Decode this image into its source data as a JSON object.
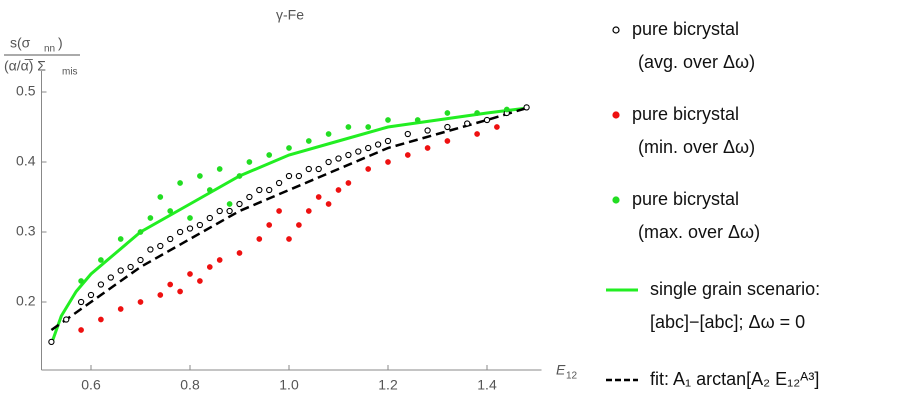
{
  "chart_data": {
    "type": "scatter",
    "title": "γ-Fe",
    "y_label": {
      "numerator": [
        "s(σ",
        "nn",
        ")"
      ],
      "denominator": [
        "(α/α̅) Σ",
        "mis"
      ]
    },
    "x_label": [
      "E",
      "12"
    ],
    "xlim": [
      0.5,
      1.5
    ],
    "ylim": [
      0.1,
      0.53
    ],
    "xticks": [
      0.6,
      0.8,
      {
        "value": 1.0,
        "label": "1.0"
      },
      1.2,
      1.4
    ],
    "yticks": [
      0.2,
      0.3,
      0.4,
      0.5
    ],
    "series": [
      {
        "name": "pure bicrystal",
        "name_line2": "(avg. over Δω)",
        "kind": "open",
        "color": "#000000",
        "x": [
          0.52,
          0.55,
          0.58,
          0.6,
          0.62,
          0.64,
          0.66,
          0.68,
          0.7,
          0.72,
          0.74,
          0.76,
          0.78,
          0.8,
          0.82,
          0.84,
          0.86,
          0.88,
          0.9,
          0.92,
          0.94,
          0.96,
          0.98,
          1.0,
          1.02,
          1.04,
          1.06,
          1.08,
          1.1,
          1.12,
          1.14,
          1.16,
          1.18,
          1.2,
          1.24,
          1.28,
          1.32,
          1.36,
          1.4,
          1.44,
          1.48
        ],
        "values": [
          0.143,
          0.175,
          0.2,
          0.21,
          0.225,
          0.235,
          0.245,
          0.25,
          0.26,
          0.275,
          0.28,
          0.29,
          0.3,
          0.305,
          0.31,
          0.32,
          0.33,
          0.33,
          0.34,
          0.35,
          0.36,
          0.36,
          0.37,
          0.38,
          0.38,
          0.39,
          0.39,
          0.4,
          0.405,
          0.41,
          0.415,
          0.42,
          0.425,
          0.43,
          0.44,
          0.445,
          0.45,
          0.455,
          0.46,
          0.47,
          0.478
        ]
      },
      {
        "name": "pure bicrystal",
        "name_line2": "(min. over Δω)",
        "kind": "dot",
        "color": "#ee1111",
        "x": [
          0.58,
          0.62,
          0.66,
          0.7,
          0.74,
          0.76,
          0.78,
          0.8,
          0.82,
          0.84,
          0.86,
          0.9,
          0.94,
          0.96,
          0.98,
          1.0,
          1.02,
          1.04,
          1.06,
          1.08,
          1.1,
          1.12,
          1.16,
          1.2,
          1.24,
          1.28,
          1.32,
          1.38,
          1.42
        ],
        "values": [
          0.16,
          0.175,
          0.19,
          0.2,
          0.21,
          0.225,
          0.215,
          0.24,
          0.23,
          0.25,
          0.26,
          0.27,
          0.29,
          0.31,
          0.33,
          0.29,
          0.31,
          0.33,
          0.35,
          0.34,
          0.36,
          0.37,
          0.39,
          0.4,
          0.41,
          0.42,
          0.43,
          0.44,
          0.45
        ]
      },
      {
        "name": "pure bicrystal",
        "name_line2": "(max. over Δω)",
        "kind": "dot",
        "color": "#22dd22",
        "x": [
          0.58,
          0.62,
          0.66,
          0.7,
          0.72,
          0.74,
          0.76,
          0.78,
          0.8,
          0.82,
          0.84,
          0.86,
          0.88,
          0.9,
          0.92,
          0.96,
          1.0,
          1.04,
          1.08,
          1.12,
          1.16,
          1.2,
          1.26,
          1.32,
          1.38,
          1.44
        ],
        "values": [
          0.23,
          0.26,
          0.29,
          0.3,
          0.32,
          0.35,
          0.33,
          0.37,
          0.32,
          0.38,
          0.36,
          0.39,
          0.34,
          0.38,
          0.4,
          0.41,
          0.42,
          0.43,
          0.44,
          0.45,
          0.45,
          0.46,
          0.46,
          0.47,
          0.47,
          0.475
        ]
      },
      {
        "name": "single grain scenario:",
        "name_line2": "[abc]−[abc]; Δω = 0",
        "kind": "line",
        "color": "#22ee22",
        "x": [
          0.52,
          0.54,
          0.57,
          0.6,
          0.65,
          0.7,
          0.8,
          0.9,
          1.0,
          1.1,
          1.2,
          1.3,
          1.4,
          1.48
        ],
        "values": [
          0.14,
          0.18,
          0.215,
          0.24,
          0.27,
          0.3,
          0.34,
          0.38,
          0.41,
          0.43,
          0.45,
          0.46,
          0.47,
          0.477
        ]
      },
      {
        "name": "fit: A₁ arctan[A₂ E₁₂ᴬ³]",
        "kind": "dashed",
        "color": "#000000",
        "x": [
          0.52,
          0.6,
          0.7,
          0.8,
          0.9,
          1.0,
          1.1,
          1.2,
          1.3,
          1.4,
          1.48
        ],
        "values": [
          0.16,
          0.2,
          0.25,
          0.29,
          0.33,
          0.36,
          0.39,
          0.42,
          0.44,
          0.46,
          0.477
        ]
      }
    ]
  }
}
